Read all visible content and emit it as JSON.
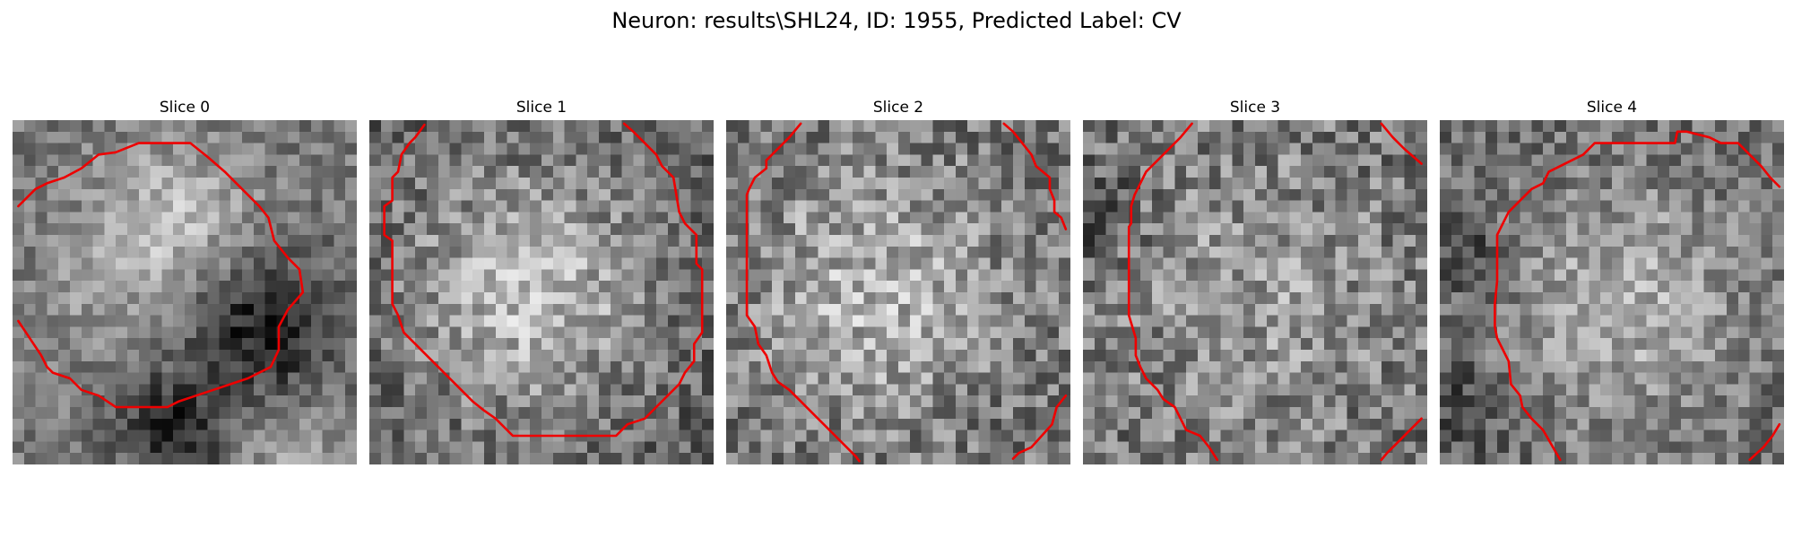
{
  "title": "Neuron: results\\SHL24, ID: 1955, Predicted Label: CV",
  "contour_color": "#ee0000",
  "panels": [
    {
      "title": "Slice 0"
    },
    {
      "title": "Slice 1"
    },
    {
      "title": "Slice 2"
    },
    {
      "title": "Slice 3"
    },
    {
      "title": "Slice 4"
    }
  ]
}
